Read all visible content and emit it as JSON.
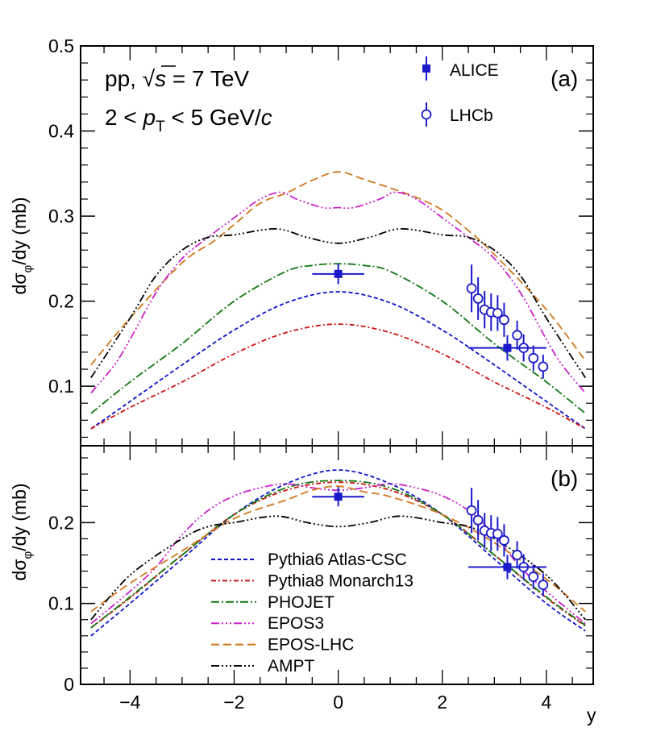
{
  "chart_data": [
    {
      "type": "line",
      "panel": "a",
      "panel_label": "(a)",
      "ylabel": "dσ_φ/dy (mb)",
      "ylabel_parts": {
        "main": "dσ",
        "sub": "φ",
        "tail": "/dy (mb)"
      },
      "xlim": [
        -4.95,
        4.9
      ],
      "ylim": [
        0.03,
        0.5
      ],
      "ytick_values": [
        0.1,
        0.2,
        0.3,
        0.4,
        0.5
      ],
      "ytick_labels": [
        "0.1",
        "0.2",
        "0.3",
        "0.4",
        "0.5"
      ],
      "annotations": {
        "line1_prefix": "pp, ",
        "sqrt": "√",
        "s": "s",
        "line1_suffix": " = 7 TeV",
        "line2_prefix": "2 < ",
        "p": "p",
        "T": "T",
        "line2_suffix": " < 5 GeV/",
        "c": "c"
      },
      "legend": [
        {
          "label": "ALICE",
          "marker": "filled-square"
        },
        {
          "label": "LHCb",
          "marker": "open-circle"
        }
      ],
      "series": [
        {
          "name": "EPOS-LHC",
          "color": "#d2781e",
          "dash": "10,5",
          "x": [
            -4.75,
            -4,
            -3,
            -2.4,
            -2,
            -1.5,
            -1,
            -0.5,
            0,
            0.5,
            1,
            1.5,
            2,
            2.5,
            3,
            4,
            4.75
          ],
          "y": [
            0.125,
            0.18,
            0.245,
            0.27,
            0.29,
            0.315,
            0.327,
            0.342,
            0.352,
            0.343,
            0.333,
            0.322,
            0.307,
            0.283,
            0.255,
            0.19,
            0.13
          ]
        },
        {
          "name": "EPOS3",
          "color": "#cc22cc",
          "dash": "10,3,2,3,2,3,2,3",
          "x": [
            -4.75,
            -4.3,
            -4,
            -3.5,
            -3,
            -2.5,
            -2,
            -1.5,
            -1.1,
            -0.8,
            -0.3,
            0,
            0.3,
            0.8,
            1.1,
            1.5,
            2,
            2.5,
            3,
            3.5,
            4,
            4.3,
            4.75
          ],
          "y": [
            0.092,
            0.125,
            0.155,
            0.21,
            0.25,
            0.275,
            0.298,
            0.32,
            0.328,
            0.32,
            0.31,
            0.31,
            0.31,
            0.32,
            0.328,
            0.32,
            0.298,
            0.275,
            0.25,
            0.21,
            0.155,
            0.125,
            0.092
          ]
        },
        {
          "name": "AMPT",
          "color": "#000000",
          "dash": "10,3,2,3,2,3,2,3",
          "x": [
            -4.75,
            -4,
            -3.5,
            -3,
            -2.5,
            -2,
            -1.2,
            -0.6,
            0,
            0.6,
            1.2,
            2,
            2.5,
            3,
            3.5,
            4,
            4.75
          ],
          "y": [
            0.11,
            0.18,
            0.23,
            0.26,
            0.275,
            0.278,
            0.285,
            0.275,
            0.268,
            0.275,
            0.285,
            0.278,
            0.275,
            0.26,
            0.23,
            0.18,
            0.11
          ]
        },
        {
          "name": "PHOJET",
          "color": "#117711",
          "dash": "10,3,2,3",
          "x": [
            -4.75,
            -4,
            -3,
            -2,
            -1,
            -0.5,
            0,
            0.5,
            1,
            2,
            3,
            4,
            4.75
          ],
          "y": [
            0.068,
            0.105,
            0.15,
            0.2,
            0.235,
            0.242,
            0.244,
            0.242,
            0.235,
            0.2,
            0.15,
            0.105,
            0.068
          ]
        },
        {
          "name": "Pythia6 Atlas-CSC",
          "color": "#1111cc",
          "dash": "5,3",
          "x": [
            -4.75,
            -4,
            -3,
            -2,
            -1,
            0,
            1,
            2,
            3,
            4,
            4.75
          ],
          "y": [
            0.05,
            0.082,
            0.125,
            0.166,
            0.198,
            0.211,
            0.198,
            0.166,
            0.125,
            0.082,
            0.05
          ]
        },
        {
          "name": "Pythia8 Monarch13",
          "color": "#cc1111",
          "dash": "6,3,2,3",
          "x": [
            -4.75,
            -4,
            -3,
            -2,
            -1,
            0,
            1,
            2,
            3,
            4,
            4.75
          ],
          "y": [
            0.05,
            0.075,
            0.105,
            0.138,
            0.163,
            0.173,
            0.163,
            0.138,
            0.105,
            0.075,
            0.05
          ]
        }
      ],
      "alice_points": [
        {
          "x": 0,
          "y": 0.232,
          "xerr": 0.5,
          "yerr": 0.012
        },
        {
          "x": 3.25,
          "y": 0.145,
          "xerr": 0.75,
          "yerr": 0.015
        }
      ],
      "lhcb_points": [
        {
          "x": 2.5625,
          "y": 0.215,
          "yerr": 0.028
        },
        {
          "x": 2.6875,
          "y": 0.203,
          "yerr": 0.025
        },
        {
          "x": 2.8125,
          "y": 0.19,
          "yerr": 0.022
        },
        {
          "x": 2.9375,
          "y": 0.187,
          "yerr": 0.022
        },
        {
          "x": 3.0625,
          "y": 0.186,
          "yerr": 0.021
        },
        {
          "x": 3.1875,
          "y": 0.178,
          "yerr": 0.02
        },
        {
          "x": 3.4375,
          "y": 0.16,
          "yerr": 0.017
        },
        {
          "x": 3.5625,
          "y": 0.145,
          "yerr": 0.016
        },
        {
          "x": 3.75,
          "y": 0.133,
          "yerr": 0.015
        },
        {
          "x": 3.9375,
          "y": 0.123,
          "yerr": 0.014
        }
      ]
    },
    {
      "type": "line",
      "panel": "b",
      "panel_label": "(b)",
      "ylabel": "dσ_φ/dy (mb)",
      "ylabel_parts": {
        "main": "dσ",
        "sub": "φ",
        "tail": "/dy (mb)"
      },
      "xlabel": "y",
      "xlim": [
        -4.95,
        4.9
      ],
      "ylim": [
        0,
        0.295
      ],
      "xtick_values": [
        -4,
        -2,
        0,
        2,
        4
      ],
      "xtick_labels": [
        "−4",
        "−2",
        "0",
        "2",
        "4"
      ],
      "ytick_values": [
        0,
        0.1,
        0.2
      ],
      "ytick_labels": [
        "0",
        "0.1",
        "0.2"
      ],
      "legend": [
        {
          "label": "Pythia6 Atlas-CSC",
          "color": "#1111cc",
          "dash": "5,3"
        },
        {
          "label": "Pythia8 Monarch13",
          "color": "#cc1111",
          "dash": "6,3,2,3"
        },
        {
          "label": "PHOJET",
          "color": "#117711",
          "dash": "10,3,2,3"
        },
        {
          "label": "EPOS3",
          "color": "#cc22cc",
          "dash": "10,3,2,3,2,3,2,3"
        },
        {
          "label": "EPOS-LHC",
          "color": "#d2781e",
          "dash": "10,5"
        },
        {
          "label": "AMPT",
          "color": "#000000",
          "dash": "10,3,2,3,2,3,2,3"
        }
      ],
      "series": [
        {
          "name": "Pythia6 Atlas-CSC",
          "color": "#1111cc",
          "dash": "5,3",
          "x": [
            -4.75,
            -4,
            -3,
            -2,
            -1,
            0,
            1,
            2,
            3,
            4,
            4.75
          ],
          "y": [
            0.06,
            0.1,
            0.155,
            0.21,
            0.248,
            0.265,
            0.248,
            0.21,
            0.155,
            0.1,
            0.066
          ]
        },
        {
          "name": "Pythia8 Monarch13",
          "color": "#cc1111",
          "dash": "6,3,2,3",
          "x": [
            -4.75,
            -4,
            -3,
            -2,
            -1,
            0,
            1,
            2,
            3,
            4,
            4.75
          ],
          "y": [
            0.07,
            0.107,
            0.16,
            0.21,
            0.24,
            0.25,
            0.24,
            0.21,
            0.16,
            0.107,
            0.072
          ]
        },
        {
          "name": "PHOJET",
          "color": "#117711",
          "dash": "10,3,2,3",
          "x": [
            -4.75,
            -4,
            -3,
            -2,
            -1,
            0,
            1,
            2,
            3,
            4,
            4.75
          ],
          "y": [
            0.07,
            0.108,
            0.16,
            0.21,
            0.243,
            0.252,
            0.243,
            0.21,
            0.16,
            0.108,
            0.073
          ]
        },
        {
          "name": "EPOS3",
          "color": "#cc22cc",
          "dash": "10,3,2,3,2,3,2,3",
          "x": [
            -4.75,
            -4,
            -3.5,
            -3,
            -2.5,
            -2,
            -1.5,
            -1,
            -0.5,
            0,
            0.5,
            1,
            1.5,
            2,
            2.5,
            3,
            3.5,
            4,
            4.75
          ],
          "y": [
            0.075,
            0.115,
            0.145,
            0.185,
            0.215,
            0.233,
            0.243,
            0.248,
            0.243,
            0.24,
            0.243,
            0.248,
            0.243,
            0.233,
            0.215,
            0.185,
            0.145,
            0.115,
            0.075
          ]
        },
        {
          "name": "EPOS-LHC",
          "color": "#d2781e",
          "dash": "10,5",
          "x": [
            -4.75,
            -4,
            -3,
            -2,
            -1,
            -0.5,
            0,
            0.5,
            1,
            2,
            3,
            4,
            4.75
          ],
          "y": [
            0.09,
            0.125,
            0.165,
            0.205,
            0.228,
            0.24,
            0.245,
            0.238,
            0.232,
            0.21,
            0.175,
            0.13,
            0.09
          ]
        },
        {
          "name": "AMPT",
          "color": "#000000",
          "dash": "10,3,2,3,2,3,2,3",
          "x": [
            -4.75,
            -4,
            -3,
            -2.5,
            -2,
            -1.2,
            -0.6,
            0,
            0.6,
            1.2,
            2,
            2.5,
            3,
            4,
            4.75
          ],
          "y": [
            0.08,
            0.135,
            0.18,
            0.195,
            0.2,
            0.208,
            0.2,
            0.195,
            0.2,
            0.208,
            0.2,
            0.195,
            0.18,
            0.135,
            0.08
          ]
        }
      ],
      "alice_points": [
        {
          "x": 0,
          "y": 0.232,
          "xerr": 0.5,
          "yerr": 0.012
        },
        {
          "x": 3.25,
          "y": 0.145,
          "xerr": 0.75,
          "yerr": 0.015
        }
      ],
      "lhcb_points": [
        {
          "x": 2.5625,
          "y": 0.215,
          "yerr": 0.028
        },
        {
          "x": 2.6875,
          "y": 0.203,
          "yerr": 0.025
        },
        {
          "x": 2.8125,
          "y": 0.19,
          "yerr": 0.022
        },
        {
          "x": 2.9375,
          "y": 0.187,
          "yerr": 0.022
        },
        {
          "x": 3.0625,
          "y": 0.186,
          "yerr": 0.021
        },
        {
          "x": 3.1875,
          "y": 0.178,
          "yerr": 0.02
        },
        {
          "x": 3.4375,
          "y": 0.16,
          "yerr": 0.017
        },
        {
          "x": 3.5625,
          "y": 0.145,
          "yerr": 0.016
        },
        {
          "x": 3.75,
          "y": 0.133,
          "yerr": 0.015
        },
        {
          "x": 3.9375,
          "y": 0.123,
          "yerr": 0.014
        }
      ]
    }
  ],
  "colors": {
    "data_blue": "#1a1acc"
  }
}
